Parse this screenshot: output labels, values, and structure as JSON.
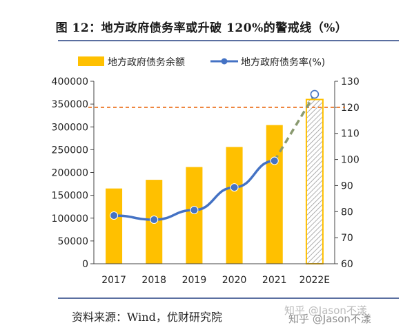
{
  "figure_title": "图 12：地方政府债务率或升破 120%的警戒线（%）",
  "source": "资料来源：Wind，优财研究院",
  "watermark": "知乎 @Jason不漾",
  "colors": {
    "bar": "#ffc000",
    "line": "#4472c4",
    "threshold": "#ed7d31",
    "projection": "#8a9a70",
    "rule": "#5a6fa0"
  },
  "chart_data": {
    "type": "bar",
    "categories": [
      "2017",
      "2018",
      "2019",
      "2020",
      "2021",
      "2022E"
    ],
    "series": [
      {
        "name": "地方政府债务余额",
        "type": "bar",
        "axis": "left",
        "values": [
          165000,
          184000,
          212000,
          256000,
          304000,
          360000
        ],
        "projected_index": 5
      },
      {
        "name": "地方政府债务率(%)",
        "type": "line",
        "axis": "right",
        "values": [
          78.5,
          76.9,
          80.6,
          89.3,
          99.5,
          125
        ],
        "projected_from_index": 4
      }
    ],
    "threshold": {
      "value": 120,
      "axis": "right",
      "style": "dashed"
    },
    "y_left": {
      "min": 0,
      "max": 400000,
      "ticks": [
        "0",
        "50000",
        "100000",
        "150000",
        "200000",
        "250000",
        "300000",
        "350000",
        "400000"
      ]
    },
    "y_right": {
      "min": 60,
      "max": 130,
      "ticks": [
        "60",
        "70",
        "80",
        "90",
        "100",
        "110",
        "120",
        "130"
      ]
    },
    "legend_position": "top",
    "grid": false
  }
}
